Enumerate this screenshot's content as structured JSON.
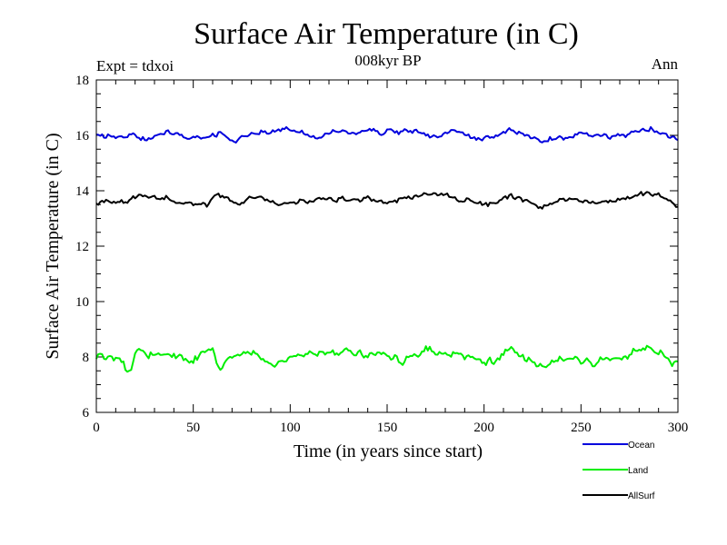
{
  "chart_data": {
    "type": "line",
    "title": "Surface Air Temperature (in C)",
    "subtitle": "008kyr BP",
    "expt_label": "Expt = tdxoi",
    "period_label": "Ann",
    "xlabel": "Time (in years since start)",
    "ylabel": "Surface Air Temperature (in C)",
    "xlim": [
      0,
      300
    ],
    "ylim": [
      6,
      18
    ],
    "x_ticks": [
      0,
      50,
      100,
      150,
      200,
      250,
      300
    ],
    "y_ticks": [
      6,
      8,
      10,
      12,
      14,
      16,
      18
    ],
    "grid": false,
    "legend_position": "bottom-right",
    "series": [
      {
        "name": "Ocean",
        "color": "#0000dd",
        "base": 16.0,
        "noise": 0.09,
        "anchors": [
          [
            0,
            15.95
          ],
          [
            18,
            15.98
          ],
          [
            26,
            15.85
          ],
          [
            33,
            16.08
          ],
          [
            55,
            15.92
          ],
          [
            62,
            16.1
          ],
          [
            71,
            15.82
          ],
          [
            83,
            16.05
          ],
          [
            100,
            16.2
          ],
          [
            115,
            15.9
          ],
          [
            120,
            16.08
          ],
          [
            160,
            16.18
          ],
          [
            176,
            15.95
          ],
          [
            180,
            16.17
          ],
          [
            200,
            15.9
          ],
          [
            210,
            16.05
          ],
          [
            213,
            16.2
          ],
          [
            228,
            15.82
          ],
          [
            248,
            16.0
          ],
          [
            268,
            15.95
          ],
          [
            285,
            16.2
          ],
          [
            292,
            16.12
          ],
          [
            300,
            15.88
          ]
        ]
      },
      {
        "name": "Land",
        "color": "#00ee00",
        "base": 8.0,
        "noise": 0.13,
        "anchors": [
          [
            0,
            7.88
          ],
          [
            10,
            7.95
          ],
          [
            17,
            7.55
          ],
          [
            20,
            8.1
          ],
          [
            30,
            8.12
          ],
          [
            48,
            7.9
          ],
          [
            60,
            8.2
          ],
          [
            63,
            7.6
          ],
          [
            71,
            8.0
          ],
          [
            80,
            8.1
          ],
          [
            95,
            7.7
          ],
          [
            100,
            8.05
          ],
          [
            140,
            8.2
          ],
          [
            158,
            7.95
          ],
          [
            172,
            8.3
          ],
          [
            182,
            8.05
          ],
          [
            205,
            7.9
          ],
          [
            212,
            8.15
          ],
          [
            230,
            7.75
          ],
          [
            242,
            8.0
          ],
          [
            255,
            7.8
          ],
          [
            265,
            7.95
          ],
          [
            285,
            8.3
          ],
          [
            293,
            8.1
          ],
          [
            298,
            7.8
          ]
        ]
      },
      {
        "name": "AllSurf",
        "color": "#000000",
        "base": 13.65,
        "noise": 0.08,
        "anchors": [
          [
            0,
            13.55
          ],
          [
            15,
            13.6
          ],
          [
            20,
            13.8
          ],
          [
            33,
            13.75
          ],
          [
            44,
            13.6
          ],
          [
            57,
            13.5
          ],
          [
            62,
            13.85
          ],
          [
            72,
            13.55
          ],
          [
            80,
            13.75
          ],
          [
            97,
            13.55
          ],
          [
            112,
            13.7
          ],
          [
            140,
            13.75
          ],
          [
            150,
            13.55
          ],
          [
            163,
            13.8
          ],
          [
            180,
            13.85
          ],
          [
            192,
            13.65
          ],
          [
            205,
            13.55
          ],
          [
            214,
            13.8
          ],
          [
            230,
            13.4
          ],
          [
            240,
            13.65
          ],
          [
            262,
            13.6
          ],
          [
            283,
            13.85
          ],
          [
            290,
            13.8
          ],
          [
            300,
            13.5
          ]
        ]
      }
    ]
  }
}
